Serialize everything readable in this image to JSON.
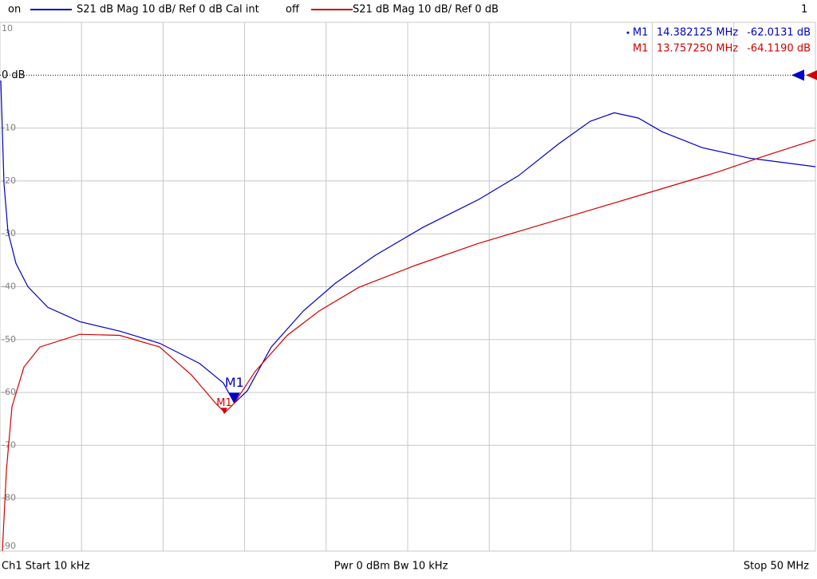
{
  "chart_data": {
    "type": "line",
    "channel_number": "1",
    "footer": {
      "start": "Ch1  Start  10 kHz",
      "power": "Pwr  0 dBm  Bw  10 kHz",
      "stop": "Stop  50 MHz"
    },
    "xlim": [
      0.01,
      50
    ],
    "ylim": [
      -90,
      10
    ],
    "yticks": [
      10,
      {
        "value": 0,
        "label": "0 dB"
      },
      -10,
      -20,
      -30,
      -40,
      -50,
      -60,
      -70,
      -80,
      -90
    ],
    "grid": true,
    "series": [
      {
        "status": "on",
        "name": "S21  dB Mag  10 dB/ Ref 0 dB  Cal int",
        "color": "#0000c8",
        "x": [
          0.059,
          0.255,
          0.499,
          0.988,
          1.722,
          2.945,
          4.901,
          7.347,
          9.792,
          12.24,
          13.7,
          14.38,
          15.17,
          16.64,
          18.6,
          20.55,
          23.0,
          25.93,
          29.36,
          31.8,
          34.25,
          36.2,
          37.67,
          39.14,
          40.6,
          43.05,
          45.99,
          50
        ],
        "values": [
          -1,
          -20.5,
          -29.6,
          -35.6,
          -40,
          -43.9,
          -46.6,
          -48.4,
          -50.7,
          -54.5,
          -58.2,
          -62,
          -59.7,
          -51.4,
          -44.6,
          -39.4,
          -34.1,
          -28.8,
          -23.5,
          -19,
          -13,
          -8.7,
          -7.1,
          -8.1,
          -10.7,
          -13.7,
          -15.7,
          -17.3
        ],
        "marker": {
          "name": "M1",
          "x": 14.382125,
          "y": -62.0131,
          "x_label": "14.382125 MHz",
          "y_label": "-62.0131 dB"
        }
      },
      {
        "status": "off",
        "name": "S21  dB Mag  10 dB/ Ref 0 dB",
        "color": "#d40000",
        "x": [
          0.157,
          0.401,
          0.744,
          1.477,
          2.456,
          4.901,
          7.347,
          9.792,
          11.75,
          13.22,
          13.8,
          14.38,
          15.66,
          17.62,
          19.57,
          22.02,
          25.44,
          29.36,
          34.25,
          39.14,
          44.03,
          46.96,
          50
        ],
        "values": [
          -90,
          -74.8,
          -62.7,
          -55.2,
          -51.4,
          -49,
          -49.2,
          -51.4,
          -56.7,
          -62,
          -63.8,
          -62,
          -56,
          -49.2,
          -44.6,
          -40.1,
          -36,
          -31.8,
          -27.3,
          -22.8,
          -18.3,
          -15.2,
          -12.2
        ],
        "marker": {
          "name": "M1",
          "x": 13.75725,
          "y": -64.119,
          "x_label": "13.757250 MHz",
          "y_label": "-64.1190 dB"
        }
      }
    ]
  }
}
